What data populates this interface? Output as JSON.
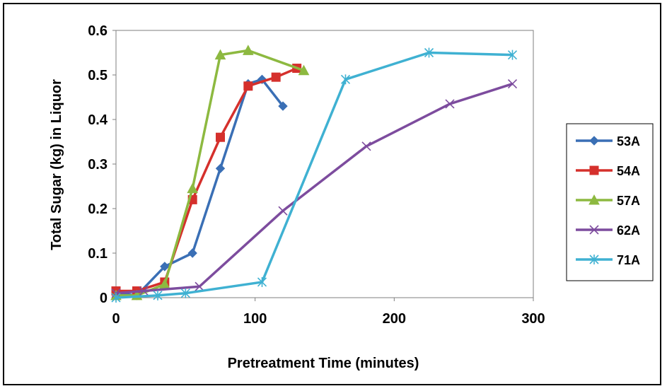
{
  "chart_data": {
    "type": "line",
    "title": "",
    "xlabel": "Pretreatment Time (minutes)",
    "ylabel": "Total Sugar (kg) in Liquor",
    "xlim": [
      0,
      300
    ],
    "ylim": [
      0,
      0.6
    ],
    "xticks": [
      "0",
      "100",
      "200",
      "300"
    ],
    "yticks": [
      "0",
      "0.1",
      "0.2",
      "0.3",
      "0.4",
      "0.5",
      "0.6"
    ],
    "grid": false,
    "legend_position": "right",
    "series": [
      {
        "name": "53A",
        "color": "#3a6fb5",
        "marker": "diamond",
        "points": [
          [
            0,
            0.01
          ],
          [
            15,
            0.005
          ],
          [
            35,
            0.07
          ],
          [
            55,
            0.1
          ],
          [
            75,
            0.29
          ],
          [
            95,
            0.48
          ],
          [
            105,
            0.49
          ],
          [
            120,
            0.43
          ]
        ]
      },
      {
        "name": "54A",
        "color": "#d5302c",
        "marker": "square",
        "points": [
          [
            0,
            0.015
          ],
          [
            15,
            0.015
          ],
          [
            35,
            0.035
          ],
          [
            55,
            0.22
          ],
          [
            75,
            0.36
          ],
          [
            95,
            0.475
          ],
          [
            115,
            0.495
          ],
          [
            130,
            0.515
          ]
        ]
      },
      {
        "name": "57A",
        "color": "#8db940",
        "marker": "triangle",
        "points": [
          [
            0,
            0.005
          ],
          [
            15,
            0.005
          ],
          [
            35,
            0.03
          ],
          [
            55,
            0.245
          ],
          [
            75,
            0.545
          ],
          [
            95,
            0.555
          ],
          [
            135,
            0.51
          ]
        ]
      },
      {
        "name": "62A",
        "color": "#7d4c9e",
        "marker": "x",
        "points": [
          [
            0,
            0.01
          ],
          [
            20,
            0.015
          ],
          [
            60,
            0.025
          ],
          [
            120,
            0.195
          ],
          [
            180,
            0.34
          ],
          [
            240,
            0.435
          ],
          [
            285,
            0.48
          ]
        ]
      },
      {
        "name": "71A",
        "color": "#3fb1d2",
        "marker": "star",
        "points": [
          [
            0,
            0.0
          ],
          [
            30,
            0.005
          ],
          [
            50,
            0.01
          ],
          [
            105,
            0.035
          ],
          [
            165,
            0.49
          ],
          [
            225,
            0.55
          ],
          [
            285,
            0.545
          ]
        ]
      }
    ]
  }
}
